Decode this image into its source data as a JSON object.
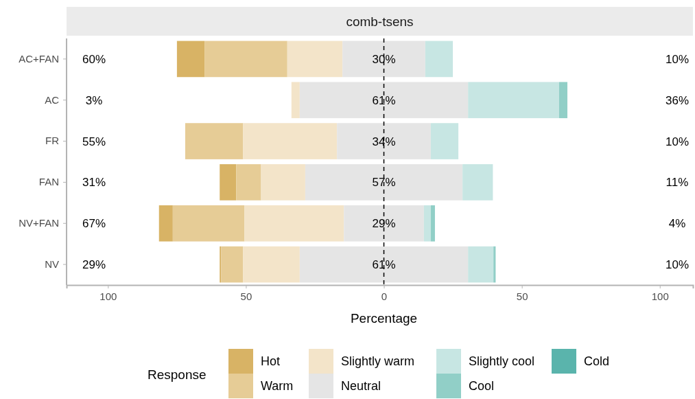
{
  "chart_data": {
    "type": "bar",
    "orientation": "horizontal",
    "title": "comb-tsens",
    "xlabel": "Percentage",
    "legend_title": "Response",
    "legend": "bottom",
    "categories": [
      "AC+FAN",
      "AC",
      "FR",
      "FAN",
      "NV+FAN",
      "NV"
    ],
    "series": [
      {
        "name": "Hot",
        "color": "#d8b365",
        "values": [
          10,
          null,
          null,
          6,
          5,
          0.5
        ],
        "base": [
          -75,
          null,
          null,
          -59.5,
          -81.5,
          -59.5
        ]
      },
      {
        "name": "Warm",
        "color": "#e6cc96",
        "values": [
          30,
          null,
          21,
          9,
          26,
          8
        ],
        "base": [
          -65,
          null,
          -72,
          -53.5,
          -76.5,
          -59
        ]
      },
      {
        "name": "Slightly warm",
        "color": "#f3e4c9",
        "values": [
          20,
          3,
          34,
          16,
          36,
          20.5
        ],
        "base": [
          -35,
          -33.5,
          -51,
          -44.5,
          -50.5,
          -51
        ]
      },
      {
        "name": "Neutral",
        "color": "#e5e5e5",
        "values": [
          30,
          61,
          34,
          57,
          29,
          61
        ],
        "base": [
          -15,
          -30.5,
          -17,
          -28.5,
          -14.5,
          -30.5
        ]
      },
      {
        "name": "Slightly cool",
        "color": "#c7e6e3",
        "values": [
          10,
          33,
          10,
          11,
          2.5,
          9.2
        ],
        "base": [
          15,
          30.5,
          17,
          28.5,
          14.5,
          30.5
        ]
      },
      {
        "name": "Cool",
        "color": "#91cfc7",
        "values": [
          null,
          3,
          null,
          null,
          1.5,
          0.8
        ],
        "base": [
          null,
          63.5,
          null,
          null,
          17,
          39.7
        ]
      },
      {
        "name": "Cold",
        "color": "#5ab4ac",
        "values": [
          null,
          null,
          null,
          null,
          null,
          null
        ],
        "base": [
          null,
          null,
          null,
          null,
          null,
          null
        ]
      }
    ],
    "xlim": [
      -115,
      112
    ],
    "xticks": [
      {
        "value": -100,
        "label": "100"
      },
      {
        "value": -50,
        "label": "50"
      },
      0,
      50,
      {
        "value": 100,
        "label": "100"
      }
    ],
    "ref_lines": [
      {
        "axis": "x",
        "value": 0,
        "line_style": "dashed",
        "color": "#000000"
      }
    ],
    "annotations": [
      "60%",
      "30%",
      "10%",
      "3%",
      "61%",
      "36%",
      "55%",
      "34%",
      "10%",
      "31%",
      "57%",
      "11%",
      "67%",
      "29%",
      "4%",
      "29%",
      "61%",
      "10%"
    ]
  }
}
